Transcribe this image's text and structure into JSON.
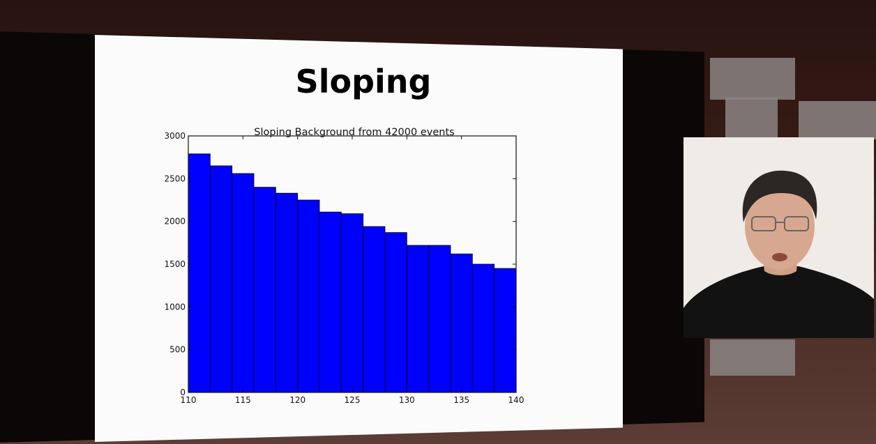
{
  "slide": {
    "title": "Sloping"
  },
  "chart_data": {
    "type": "bar",
    "title": "Sloping Background from 42000 events",
    "xlabel": "",
    "ylabel": "",
    "xlim": [
      110,
      140
    ],
    "ylim": [
      0,
      3000
    ],
    "bin_edges": [
      110,
      112,
      114,
      116,
      118,
      120,
      122,
      124,
      126,
      128,
      130,
      132,
      134,
      136,
      138,
      140
    ],
    "values": [
      2790,
      2650,
      2560,
      2400,
      2330,
      2250,
      2110,
      2090,
      1940,
      1870,
      1720,
      1720,
      1620,
      1500,
      1450
    ],
    "xticks": [
      110,
      115,
      120,
      125,
      130,
      135,
      140
    ],
    "yticks": [
      0,
      500,
      1000,
      1500,
      2000,
      2500,
      3000
    ],
    "grid": false,
    "bar_color": "#0000ff"
  },
  "webcam": {
    "label": "presenter-webcam"
  }
}
